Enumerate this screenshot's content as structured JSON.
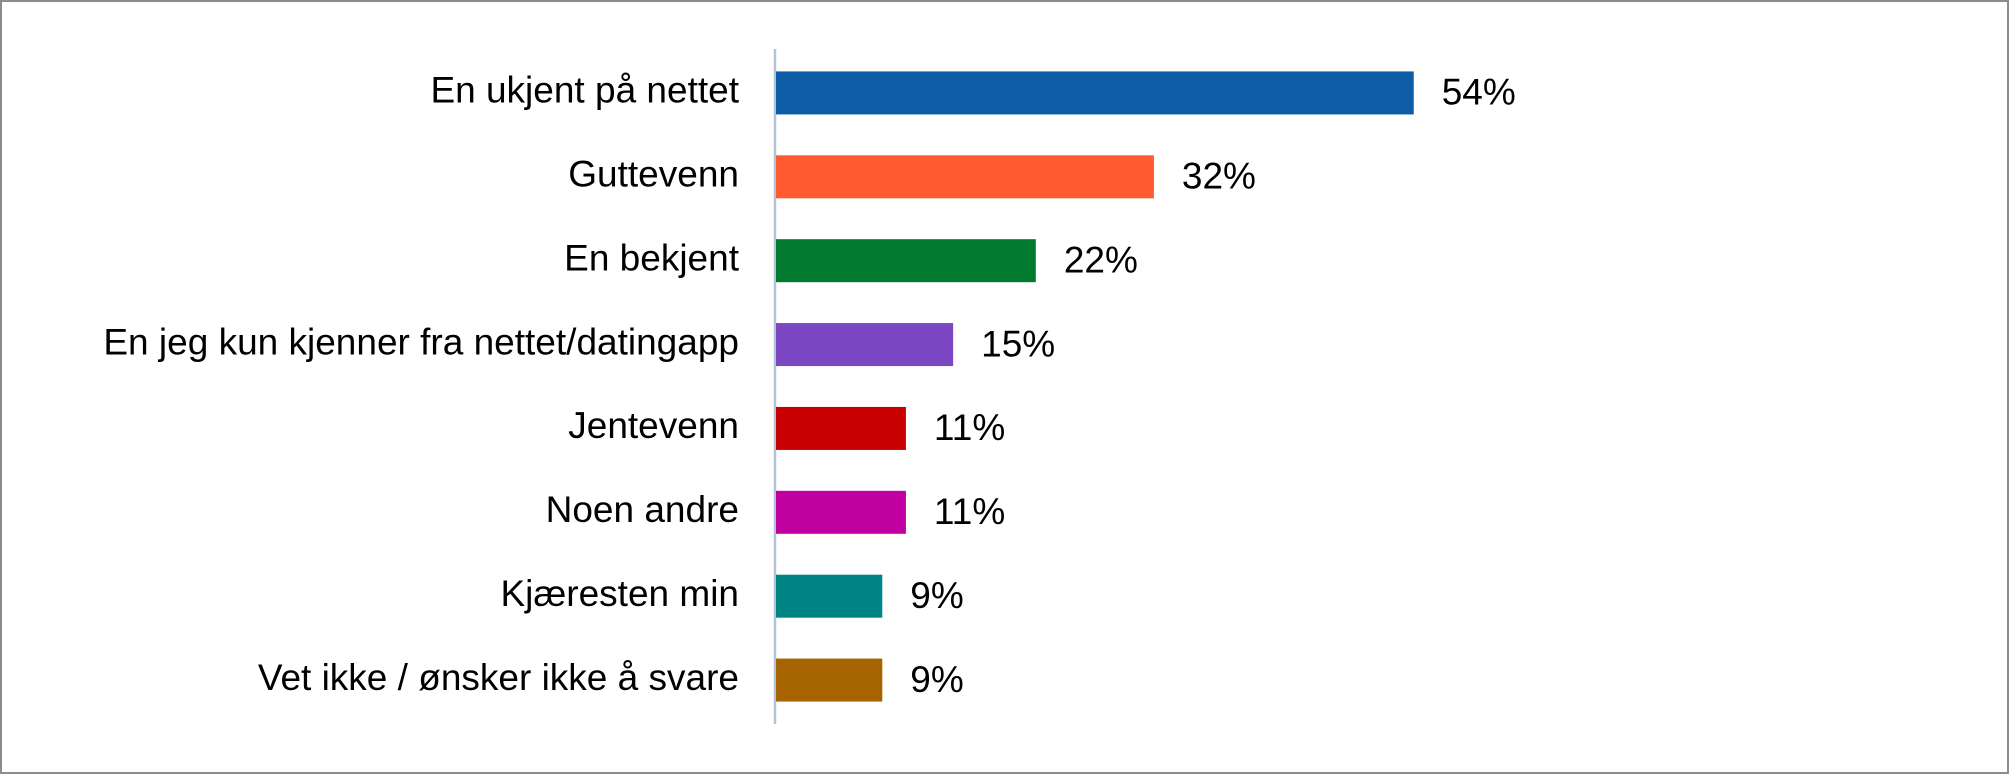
{
  "chart_data": {
    "type": "bar",
    "orientation": "horizontal",
    "categories": [
      "En ukjent på nettet",
      "Guttevenn",
      "En bekjent",
      "En jeg kun kjenner fra nettet/datingapp",
      "Jentevenn",
      "Noen andre",
      "Kjæresten min",
      "Vet ikke / ønsker ikke å svare"
    ],
    "values": [
      54,
      32,
      22,
      15,
      11,
      11,
      9,
      9
    ],
    "value_labels": [
      "54%",
      "32%",
      "22%",
      "15%",
      "11%",
      "11%",
      "9%",
      "9%"
    ],
    "colors": [
      "#0c5da5",
      "#ff5a30",
      "#007a2f",
      "#7b47c2",
      "#c80000",
      "#c000a0",
      "#008585",
      "#a66400"
    ],
    "xlim": [
      0,
      100
    ]
  }
}
